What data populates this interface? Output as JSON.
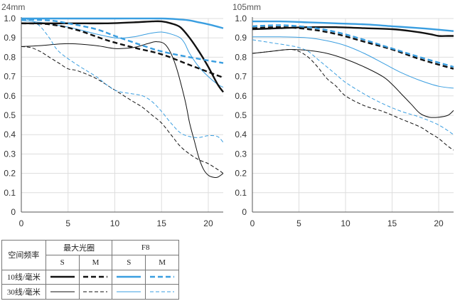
{
  "chart_data": [
    {
      "type": "line",
      "title": "24mm",
      "xlim": [
        0,
        21.6
      ],
      "ylim": [
        0,
        1.0
      ],
      "xticks": [
        0,
        5,
        10,
        15,
        20
      ],
      "yticks": [
        "0",
        "0.1",
        "0.2",
        "0.3",
        "0.4",
        "0.5",
        "0.6",
        "0.7",
        "0.8",
        "0.9",
        "1.0"
      ],
      "grid": true,
      "series": [
        {
          "freq": "10",
          "aperture": "max",
          "dir": "S",
          "x": [
            0,
            3,
            6,
            9,
            12,
            14,
            15,
            16,
            17,
            18,
            19,
            20,
            21,
            21.6
          ],
          "y": [
            0.975,
            0.975,
            0.975,
            0.975,
            0.98,
            0.985,
            0.985,
            0.975,
            0.955,
            0.9,
            0.83,
            0.75,
            0.66,
            0.62
          ]
        },
        {
          "freq": "10",
          "aperture": "max",
          "dir": "M",
          "x": [
            0,
            3,
            6,
            9,
            12,
            15,
            18,
            21.6
          ],
          "y": [
            0.975,
            0.97,
            0.94,
            0.89,
            0.85,
            0.815,
            0.76,
            0.695
          ]
        },
        {
          "freq": "10",
          "aperture": "F8",
          "dir": "S",
          "x": [
            0,
            5,
            10,
            15,
            17,
            18,
            19,
            20,
            21.6
          ],
          "y": [
            1.0,
            1.0,
            1.0,
            1.0,
            0.995,
            0.99,
            0.98,
            0.97,
            0.95
          ]
        },
        {
          "freq": "10",
          "aperture": "F8",
          "dir": "M",
          "x": [
            0,
            3,
            5,
            8,
            10,
            13,
            15,
            18,
            21.6
          ],
          "y": [
            0.995,
            0.99,
            0.975,
            0.945,
            0.91,
            0.86,
            0.83,
            0.8,
            0.77
          ]
        },
        {
          "freq": "30",
          "aperture": "max",
          "dir": "S",
          "x": [
            0,
            2,
            5,
            8,
            10,
            12,
            13.5,
            14.5,
            15.5,
            16.5,
            17.5,
            18,
            18.5,
            19,
            19.5,
            20,
            20.5,
            21,
            21.6
          ],
          "y": [
            0.855,
            0.86,
            0.87,
            0.86,
            0.845,
            0.85,
            0.87,
            0.88,
            0.86,
            0.76,
            0.58,
            0.46,
            0.37,
            0.28,
            0.22,
            0.19,
            0.18,
            0.18,
            0.2
          ]
        },
        {
          "freq": "30",
          "aperture": "max",
          "dir": "M",
          "x": [
            0,
            1,
            2,
            3,
            4,
            5,
            6,
            8,
            10,
            12,
            13,
            14,
            15,
            16,
            17,
            18,
            19,
            20,
            21,
            21.6
          ],
          "y": [
            0.855,
            0.85,
            0.83,
            0.8,
            0.77,
            0.74,
            0.73,
            0.69,
            0.63,
            0.57,
            0.54,
            0.5,
            0.46,
            0.4,
            0.34,
            0.3,
            0.27,
            0.25,
            0.22,
            0.2
          ]
        },
        {
          "freq": "30",
          "aperture": "F8",
          "dir": "S",
          "x": [
            0,
            2,
            4,
            6,
            8,
            10,
            11,
            12,
            13,
            14,
            15,
            16,
            17,
            17.5,
            18,
            19,
            20,
            21,
            21.6
          ],
          "y": [
            0.99,
            0.98,
            0.965,
            0.945,
            0.92,
            0.9,
            0.9,
            0.905,
            0.915,
            0.925,
            0.93,
            0.92,
            0.9,
            0.87,
            0.82,
            0.75,
            0.7,
            0.66,
            0.645
          ]
        },
        {
          "freq": "30",
          "aperture": "F8",
          "dir": "M",
          "x": [
            0,
            1,
            2,
            3,
            4,
            6,
            8,
            10,
            12,
            13,
            14,
            15,
            16,
            17,
            18,
            19,
            20,
            21,
            21.6
          ],
          "y": [
            1.0,
            0.99,
            0.96,
            0.9,
            0.83,
            0.76,
            0.7,
            0.63,
            0.61,
            0.6,
            0.57,
            0.52,
            0.46,
            0.41,
            0.39,
            0.385,
            0.395,
            0.39,
            0.36
          ]
        }
      ]
    },
    {
      "type": "line",
      "title": "105mm",
      "xlim": [
        0,
        21.6
      ],
      "ylim": [
        0,
        1.0
      ],
      "xticks": [
        0,
        5,
        10,
        15,
        20
      ],
      "yticks": [
        "0",
        "0.1",
        "0.2",
        "0.3",
        "0.4",
        "0.5",
        "0.6",
        "0.7",
        "0.8",
        "0.9",
        "1.0"
      ],
      "grid": true,
      "series": [
        {
          "freq": "10",
          "aperture": "max",
          "dir": "S",
          "x": [
            0,
            3,
            6,
            9,
            12,
            15,
            17,
            19,
            20,
            21,
            21.6
          ],
          "y": [
            0.945,
            0.95,
            0.955,
            0.955,
            0.95,
            0.945,
            0.935,
            0.92,
            0.91,
            0.91,
            0.91
          ]
        },
        {
          "freq": "10",
          "aperture": "max",
          "dir": "M",
          "x": [
            0,
            3,
            6,
            9,
            12,
            15,
            18,
            21.6
          ],
          "y": [
            0.95,
            0.955,
            0.945,
            0.92,
            0.88,
            0.84,
            0.79,
            0.74
          ]
        },
        {
          "freq": "10",
          "aperture": "F8",
          "dir": "S",
          "x": [
            0,
            3,
            6,
            9,
            12,
            15,
            18,
            21.6
          ],
          "y": [
            0.985,
            0.985,
            0.98,
            0.975,
            0.97,
            0.96,
            0.95,
            0.935
          ]
        },
        {
          "freq": "10",
          "aperture": "F8",
          "dir": "M",
          "x": [
            0,
            3,
            6,
            9,
            12,
            15,
            18,
            21.6
          ],
          "y": [
            0.96,
            0.965,
            0.955,
            0.93,
            0.89,
            0.845,
            0.8,
            0.75
          ]
        },
        {
          "freq": "30",
          "aperture": "max",
          "dir": "S",
          "x": [
            0,
            2,
            4,
            6,
            8,
            10,
            12,
            14,
            15,
            16,
            17,
            18,
            19,
            20,
            21,
            21.6
          ],
          "y": [
            0.82,
            0.83,
            0.84,
            0.835,
            0.82,
            0.79,
            0.75,
            0.7,
            0.66,
            0.61,
            0.56,
            0.51,
            0.49,
            0.49,
            0.5,
            0.525
          ]
        },
        {
          "freq": "30",
          "aperture": "max",
          "dir": "M",
          "x": [
            0,
            2,
            4,
            5,
            6,
            7,
            8,
            9,
            10,
            12,
            14,
            16,
            18,
            19,
            20,
            21,
            21.6
          ],
          "y": [
            0.82,
            0.83,
            0.84,
            0.83,
            0.8,
            0.75,
            0.69,
            0.65,
            0.6,
            0.55,
            0.52,
            0.48,
            0.44,
            0.41,
            0.38,
            0.34,
            0.32
          ]
        },
        {
          "freq": "30",
          "aperture": "F8",
          "dir": "S",
          "x": [
            0,
            3,
            6,
            8,
            10,
            12,
            14,
            16,
            18,
            20,
            21.6
          ],
          "y": [
            0.905,
            0.905,
            0.9,
            0.885,
            0.86,
            0.82,
            0.77,
            0.72,
            0.68,
            0.65,
            0.64
          ]
        },
        {
          "freq": "30",
          "aperture": "F8",
          "dir": "M",
          "x": [
            0,
            2,
            4,
            5,
            6,
            7,
            8,
            9,
            10,
            12,
            14,
            16,
            18,
            20,
            21.6
          ],
          "y": [
            0.89,
            0.875,
            0.86,
            0.85,
            0.83,
            0.79,
            0.75,
            0.71,
            0.67,
            0.61,
            0.56,
            0.52,
            0.49,
            0.45,
            0.4
          ]
        }
      ]
    }
  ],
  "legend": {
    "row_header": "空间频率",
    "max_aperture": "最大光圈",
    "f8": "F8",
    "s": "S",
    "m": "M",
    "row10": "10线/毫米",
    "row30": "30线/毫米"
  },
  "colors": {
    "max_aperture": "#111111",
    "f8": "#3a9ee0",
    "axis": "#555555",
    "grid": "#dddddd"
  }
}
